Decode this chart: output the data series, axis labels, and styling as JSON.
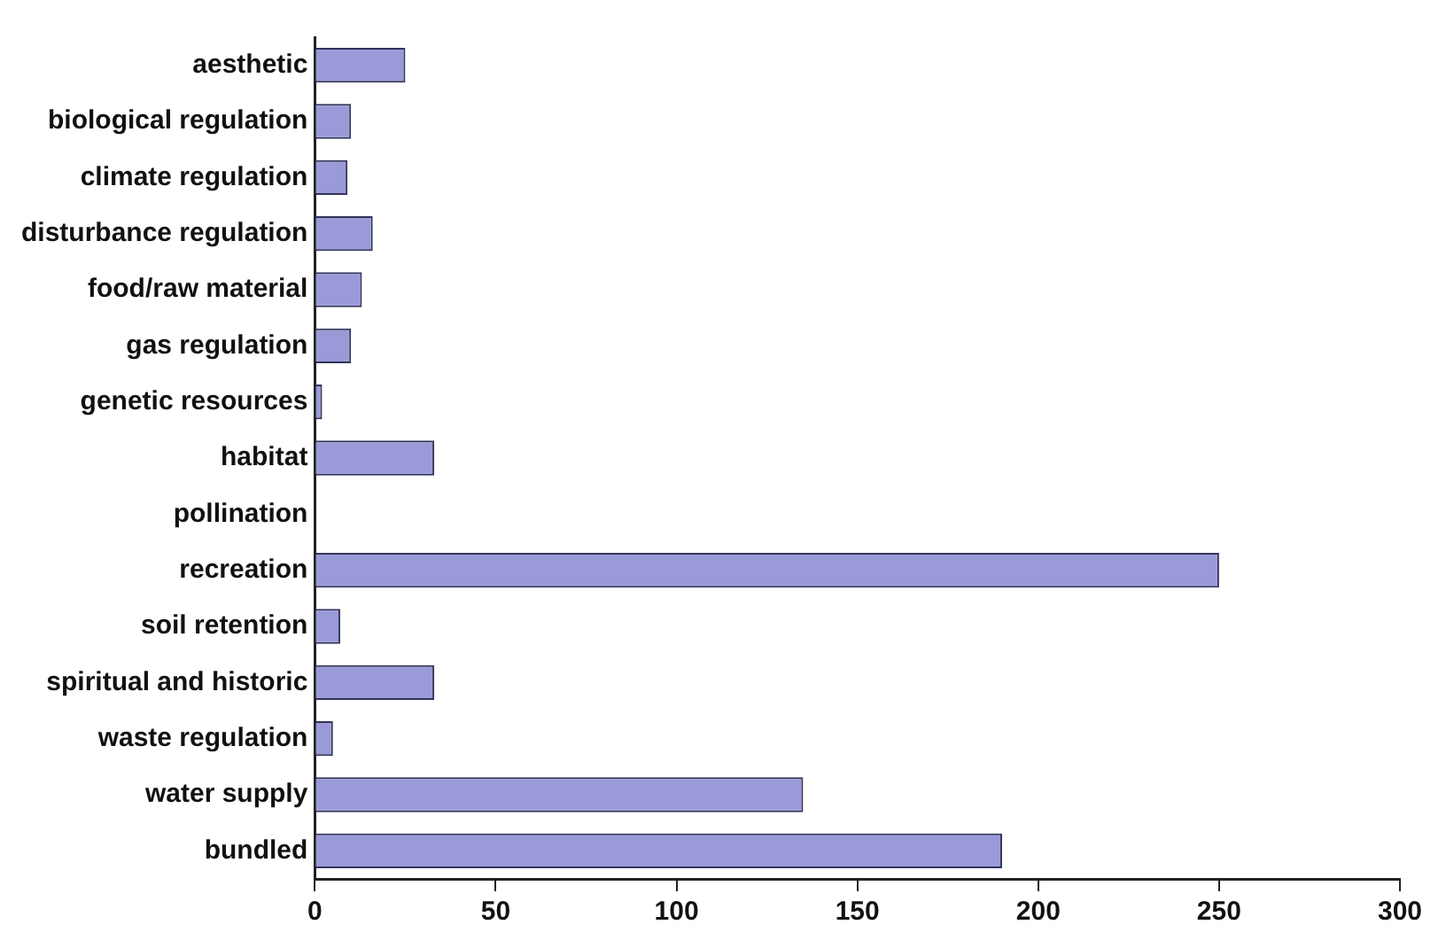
{
  "chart_data": {
    "type": "bar",
    "orientation": "horizontal",
    "categories": [
      "aesthetic",
      "biological regulation",
      "climate regulation",
      "disturbance regulation",
      "food/raw material",
      "gas regulation",
      "genetic resources",
      "habitat",
      "pollination",
      "recreation",
      "soil retention",
      "spiritual and historic",
      "waste regulation",
      "water supply",
      "bundled"
    ],
    "values": [
      25,
      10,
      9,
      16,
      13,
      10,
      2,
      33,
      0,
      250,
      7,
      33,
      5,
      135,
      190
    ],
    "color": "#9a9ad8",
    "xlim": [
      0,
      300
    ],
    "xticks": [
      0,
      50,
      100,
      150,
      200,
      250,
      300
    ],
    "grid": false,
    "legend": false
  }
}
